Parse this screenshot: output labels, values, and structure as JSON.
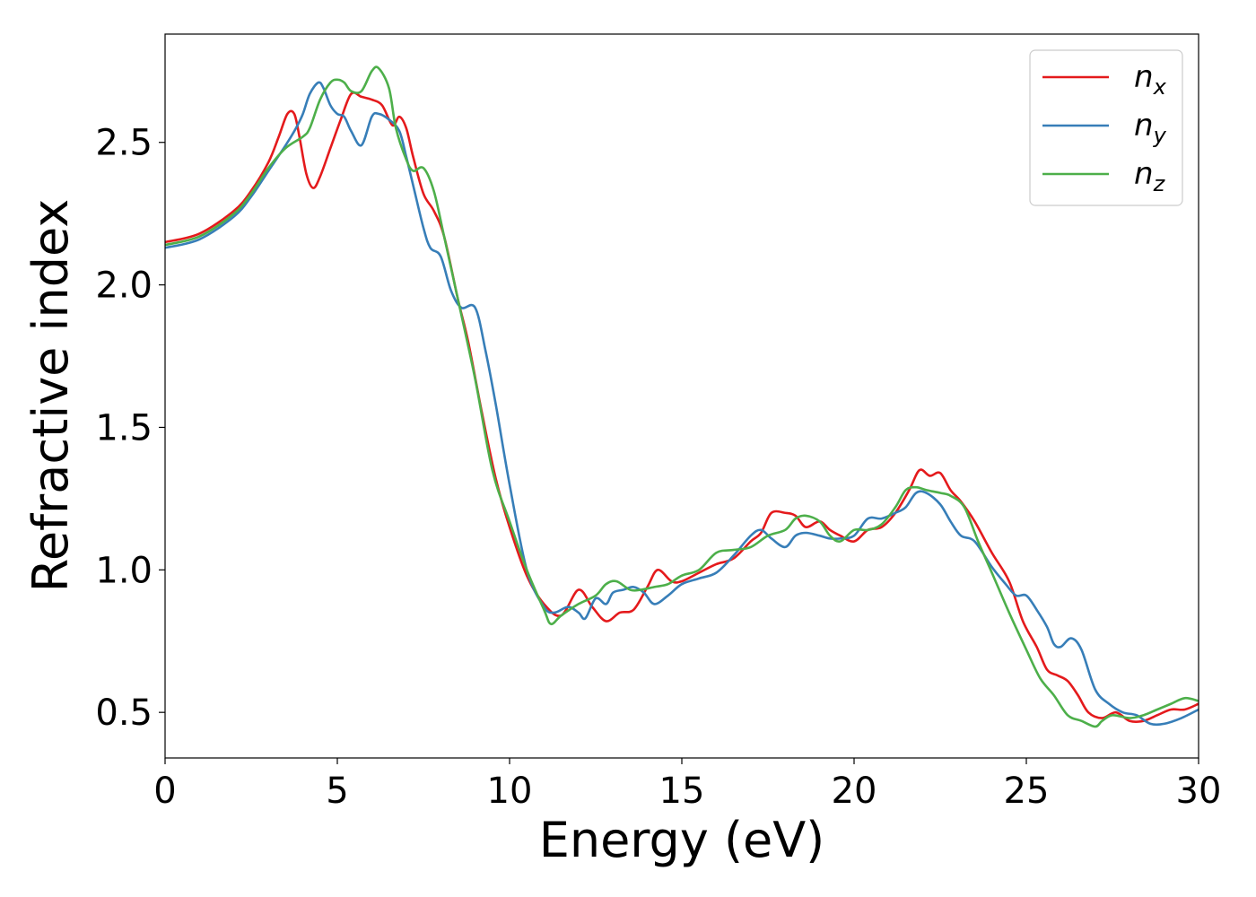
{
  "chart_data": {
    "type": "line",
    "xlabel": "Energy (eV)",
    "ylabel": "Refractive index",
    "xlim": [
      0,
      30
    ],
    "ylim": [
      0.34,
      2.88
    ],
    "xticks": [
      0,
      5,
      10,
      15,
      20,
      25,
      30
    ],
    "xtick_labels": [
      "0",
      "5",
      "10",
      "15",
      "20",
      "25",
      "30"
    ],
    "yticks": [
      0.5,
      1.0,
      1.5,
      2.0,
      2.5
    ],
    "ytick_labels": [
      "0.5",
      "1.0",
      "1.5",
      "2.0",
      "2.5"
    ],
    "grid": false,
    "legend_position": "top-right",
    "series": [
      {
        "name": "n",
        "subscript": "x",
        "color": "#e41a1c",
        "x": [
          0,
          1,
          2,
          2.5,
          3,
          3.3,
          3.55,
          3.75,
          3.9,
          4.1,
          4.3,
          4.5,
          4.8,
          5.1,
          5.4,
          5.7,
          6.0,
          6.3,
          6.6,
          6.8,
          7.0,
          7.2,
          7.5,
          7.8,
          8.1,
          8.5,
          8.8,
          9.2,
          9.6,
          10.0,
          10.5,
          11.0,
          11.5,
          12.0,
          12.4,
          12.8,
          13.2,
          13.6,
          14.0,
          14.3,
          14.7,
          15.0,
          15.5,
          16.0,
          16.5,
          17.0,
          17.3,
          17.6,
          18.0,
          18.3,
          18.6,
          19.0,
          19.3,
          19.6,
          20.0,
          20.4,
          20.8,
          21.2,
          21.6,
          21.9,
          22.2,
          22.5,
          22.8,
          23.1,
          23.5,
          24.0,
          24.5,
          24.9,
          25.3,
          25.6,
          25.9,
          26.2,
          26.5,
          26.8,
          27.2,
          27.6,
          28.0,
          28.4,
          28.8,
          29.2,
          29.6,
          30.0
        ],
        "y": [
          2.15,
          2.18,
          2.26,
          2.33,
          2.43,
          2.52,
          2.6,
          2.6,
          2.52,
          2.39,
          2.34,
          2.38,
          2.48,
          2.58,
          2.67,
          2.66,
          2.65,
          2.63,
          2.56,
          2.59,
          2.55,
          2.45,
          2.32,
          2.26,
          2.17,
          1.95,
          1.8,
          1.55,
          1.32,
          1.15,
          0.98,
          0.88,
          0.84,
          0.93,
          0.87,
          0.82,
          0.85,
          0.86,
          0.94,
          1.0,
          0.96,
          0.96,
          0.99,
          1.02,
          1.04,
          1.1,
          1.13,
          1.2,
          1.2,
          1.19,
          1.15,
          1.17,
          1.14,
          1.12,
          1.1,
          1.14,
          1.15,
          1.2,
          1.28,
          1.35,
          1.33,
          1.34,
          1.28,
          1.24,
          1.17,
          1.06,
          0.96,
          0.82,
          0.73,
          0.65,
          0.63,
          0.61,
          0.56,
          0.5,
          0.48,
          0.5,
          0.47,
          0.47,
          0.49,
          0.51,
          0.51,
          0.53
        ]
      },
      {
        "name": "n",
        "subscript": "y",
        "color": "#377eb8",
        "x": [
          0,
          1,
          2,
          2.5,
          3,
          3.5,
          3.8,
          4.0,
          4.2,
          4.45,
          4.6,
          4.8,
          5.0,
          5.2,
          5.4,
          5.7,
          6.0,
          6.2,
          6.5,
          6.8,
          7.0,
          7.2,
          7.5,
          7.7,
          8.0,
          8.3,
          8.6,
          9.0,
          9.3,
          9.6,
          10.0,
          10.5,
          11.0,
          11.3,
          11.7,
          12.0,
          12.2,
          12.5,
          12.8,
          13.0,
          13.3,
          13.6,
          13.9,
          14.2,
          14.6,
          15.0,
          15.5,
          16.0,
          16.5,
          17.0,
          17.3,
          17.6,
          18.0,
          18.3,
          18.6,
          19.0,
          19.3,
          19.6,
          20.0,
          20.4,
          20.8,
          21.2,
          21.5,
          21.8,
          22.1,
          22.5,
          22.8,
          23.1,
          23.5,
          24.0,
          24.4,
          24.7,
          25.0,
          25.3,
          25.6,
          25.8,
          26.0,
          26.3,
          26.6,
          27.0,
          27.4,
          27.8,
          28.2,
          28.6,
          29.0,
          29.5,
          30.0
        ],
        "y": [
          2.13,
          2.16,
          2.24,
          2.31,
          2.4,
          2.49,
          2.55,
          2.6,
          2.67,
          2.71,
          2.69,
          2.63,
          2.6,
          2.59,
          2.54,
          2.49,
          2.59,
          2.6,
          2.58,
          2.54,
          2.45,
          2.35,
          2.2,
          2.13,
          2.1,
          1.98,
          1.92,
          1.92,
          1.77,
          1.58,
          1.3,
          1.0,
          0.87,
          0.85,
          0.87,
          0.85,
          0.83,
          0.9,
          0.88,
          0.92,
          0.93,
          0.94,
          0.92,
          0.88,
          0.91,
          0.95,
          0.97,
          0.99,
          1.05,
          1.12,
          1.14,
          1.11,
          1.08,
          1.12,
          1.13,
          1.12,
          1.11,
          1.11,
          1.12,
          1.18,
          1.18,
          1.2,
          1.22,
          1.27,
          1.27,
          1.23,
          1.17,
          1.12,
          1.1,
          1.01,
          0.95,
          0.91,
          0.91,
          0.86,
          0.8,
          0.74,
          0.73,
          0.76,
          0.72,
          0.58,
          0.53,
          0.5,
          0.49,
          0.46,
          0.46,
          0.48,
          0.51
        ]
      },
      {
        "name": "n",
        "subscript": "z",
        "color": "#4daf4a",
        "x": [
          0,
          1,
          2,
          2.5,
          3,
          3.5,
          4.0,
          4.2,
          4.5,
          4.8,
          5.0,
          5.2,
          5.4,
          5.7,
          6.0,
          6.2,
          6.5,
          6.7,
          7.0,
          7.2,
          7.5,
          7.8,
          8.1,
          8.5,
          9.0,
          9.5,
          10.0,
          10.5,
          11.0,
          11.2,
          11.5,
          12.0,
          12.5,
          12.8,
          13.1,
          13.5,
          13.8,
          14.2,
          14.6,
          15.0,
          15.5,
          16.0,
          16.5,
          17.0,
          17.5,
          18.0,
          18.3,
          18.6,
          19.0,
          19.3,
          19.6,
          20.0,
          20.4,
          20.8,
          21.2,
          21.5,
          21.8,
          22.1,
          22.5,
          22.8,
          23.2,
          23.6,
          24.0,
          24.5,
          25.0,
          25.4,
          25.8,
          26.2,
          26.6,
          27.0,
          27.2,
          27.5,
          28.0,
          28.4,
          28.8,
          29.2,
          29.6,
          30.0
        ],
        "y": [
          2.14,
          2.17,
          2.25,
          2.32,
          2.41,
          2.48,
          2.52,
          2.55,
          2.65,
          2.71,
          2.72,
          2.71,
          2.68,
          2.68,
          2.75,
          2.76,
          2.69,
          2.55,
          2.44,
          2.4,
          2.41,
          2.33,
          2.17,
          1.95,
          1.67,
          1.35,
          1.17,
          1.0,
          0.86,
          0.81,
          0.84,
          0.88,
          0.91,
          0.95,
          0.96,
          0.93,
          0.93,
          0.94,
          0.95,
          0.98,
          1.0,
          1.06,
          1.07,
          1.08,
          1.12,
          1.14,
          1.18,
          1.19,
          1.17,
          1.12,
          1.1,
          1.14,
          1.14,
          1.16,
          1.22,
          1.28,
          1.29,
          1.28,
          1.27,
          1.26,
          1.22,
          1.1,
          0.99,
          0.85,
          0.72,
          0.62,
          0.56,
          0.49,
          0.47,
          0.45,
          0.47,
          0.49,
          0.48,
          0.49,
          0.51,
          0.53,
          0.55,
          0.54
        ]
      }
    ]
  }
}
